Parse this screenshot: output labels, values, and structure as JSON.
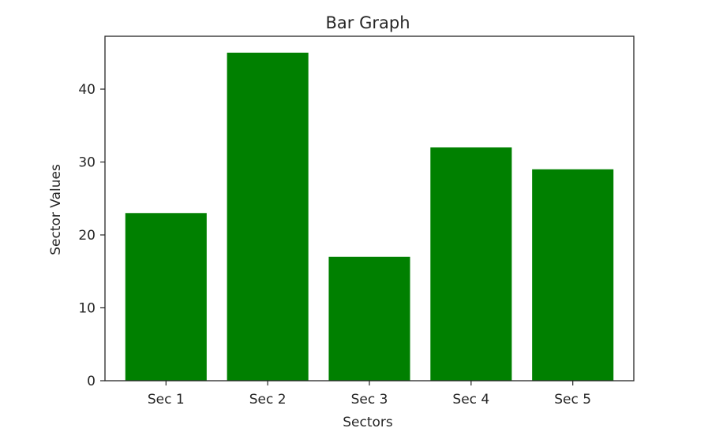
{
  "chart_data": {
    "type": "bar",
    "title": "Bar Graph",
    "xlabel": "Sectors",
    "ylabel": "Sector Values",
    "categories": [
      "Sec 1",
      "Sec 2",
      "Sec 3",
      "Sec 4",
      "Sec 5"
    ],
    "values": [
      23,
      45,
      17,
      32,
      29
    ],
    "ylim": [
      0,
      47.25
    ],
    "yticks": [
      0,
      10,
      20,
      30,
      40
    ],
    "bar_color": "#008000",
    "grid": false,
    "legend": "none"
  }
}
